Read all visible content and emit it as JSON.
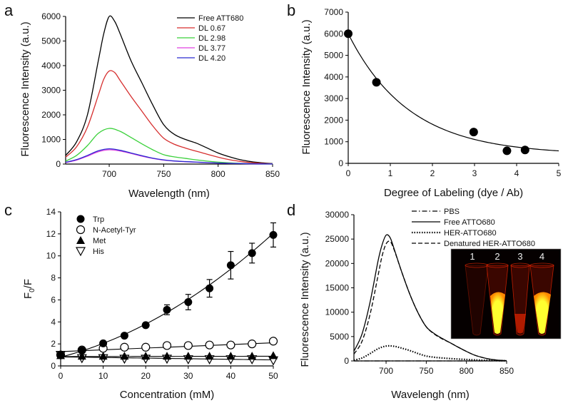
{
  "chart_data": [
    {
      "panel": "a",
      "type": "line",
      "xlabel": "Wavelength (nm)",
      "ylabel": "Fluorescence Intensity (a.u.)",
      "xlim": [
        660,
        850
      ],
      "ylim": [
        0,
        6000
      ],
      "xticks": [
        700,
        750,
        800,
        850
      ],
      "yticks": [
        0,
        1000,
        2000,
        3000,
        4000,
        5000,
        6000
      ],
      "grid": false,
      "legend": "top-right",
      "series": [
        {
          "name": "Free ATT680",
          "color": "#000000",
          "style": "solid",
          "x": [
            660,
            670,
            680,
            690,
            695,
            700,
            705,
            710,
            720,
            730,
            740,
            750,
            760,
            770,
            780,
            790,
            800,
            810,
            820,
            830,
            840,
            850
          ],
          "y": [
            350,
            900,
            2000,
            4200,
            5300,
            6000,
            5800,
            5300,
            4200,
            3300,
            2400,
            1600,
            1200,
            1000,
            850,
            650,
            450,
            300,
            180,
            100,
            50,
            20
          ]
        },
        {
          "name": "DL 0.67",
          "color": "#d62f2f",
          "style": "solid",
          "x": [
            660,
            670,
            680,
            690,
            695,
            700,
            705,
            710,
            720,
            730,
            740,
            750,
            760,
            770,
            780,
            790,
            800,
            810,
            820,
            830,
            840,
            850
          ],
          "y": [
            280,
            700,
            1500,
            2800,
            3450,
            3780,
            3720,
            3400,
            2750,
            2150,
            1550,
            1050,
            800,
            650,
            520,
            400,
            280,
            180,
            110,
            60,
            30,
            10
          ]
        },
        {
          "name": "DL 2.98",
          "color": "#3bd13b",
          "style": "solid",
          "x": [
            660,
            670,
            680,
            690,
            700,
            710,
            720,
            730,
            740,
            750,
            760,
            770,
            780,
            790,
            800,
            810,
            820,
            830,
            840,
            850
          ],
          "y": [
            120,
            350,
            750,
            1250,
            1450,
            1330,
            1080,
            820,
            580,
            380,
            290,
            230,
            170,
            120,
            80,
            50,
            30,
            15,
            8,
            5
          ]
        },
        {
          "name": "DL 3.77",
          "color": "#e040e0",
          "style": "solid",
          "x": [
            660,
            670,
            680,
            690,
            700,
            710,
            720,
            730,
            740,
            750,
            760,
            770,
            780,
            790,
            800,
            810,
            820,
            830,
            840,
            850
          ],
          "y": [
            60,
            160,
            320,
            500,
            580,
            530,
            430,
            320,
            230,
            160,
            120,
            95,
            75,
            55,
            40,
            28,
            18,
            10,
            5,
            3
          ]
        },
        {
          "name": "DL 4.20",
          "color": "#2a2ad0",
          "style": "solid",
          "x": [
            660,
            670,
            680,
            690,
            700,
            710,
            720,
            730,
            740,
            750,
            760,
            770,
            780,
            790,
            800,
            810,
            820,
            830,
            840,
            850
          ],
          "y": [
            70,
            180,
            350,
            540,
            620,
            560,
            450,
            340,
            240,
            170,
            125,
            100,
            80,
            58,
            42,
            30,
            20,
            12,
            6,
            3
          ]
        }
      ]
    },
    {
      "panel": "b",
      "type": "scatter",
      "xlabel": "Degree of Labeling (dye / Ab)",
      "ylabel": "Fluorescence Intensity (a.u.)",
      "xlim": [
        0,
        5
      ],
      "ylim": [
        0,
        7000
      ],
      "xticks": [
        0,
        1,
        2,
        3,
        4,
        5
      ],
      "yticks": [
        0,
        1000,
        2000,
        3000,
        4000,
        5000,
        6000,
        7000
      ],
      "grid": false,
      "points": {
        "x": [
          0,
          0.67,
          2.98,
          3.77,
          4.2
        ],
        "y": [
          6000,
          3750,
          1450,
          580,
          620
        ]
      },
      "fit": {
        "type": "exponential-decay",
        "y0": 400,
        "a": 5600,
        "k": 0.69
      }
    },
    {
      "panel": "c",
      "type": "scatter",
      "xlabel": "Concentration (mM)",
      "ylabel": "F0/F",
      "xlim": [
        0,
        50
      ],
      "ylim": [
        0,
        14
      ],
      "xticks": [
        0,
        10,
        20,
        30,
        40,
        50
      ],
      "yticks": [
        0,
        2,
        4,
        6,
        8,
        10,
        12,
        14
      ],
      "grid": false,
      "legend": "top-left",
      "series": [
        {
          "name": "Trp",
          "marker": "filled-circle",
          "x": [
            0,
            5,
            10,
            15,
            20,
            25,
            30,
            35,
            40,
            45,
            50
          ],
          "y": [
            1,
            1.4,
            2.05,
            2.75,
            3.7,
            5.1,
            5.8,
            7.05,
            9.15,
            10.25,
            11.9
          ],
          "err": [
            0.1,
            0.1,
            0.15,
            0.2,
            0.2,
            0.45,
            0.7,
            0.8,
            1.25,
            0.9,
            1.1
          ],
          "fit": {
            "type": "quadratic",
            "c0": 0.8,
            "c1": 0.1,
            "c2": 0.0025
          }
        },
        {
          "name": "N-Acetyl-Tyr",
          "marker": "open-circle",
          "x": [
            0,
            5,
            10,
            15,
            20,
            25,
            30,
            35,
            40,
            45,
            50
          ],
          "y": [
            1,
            1.45,
            1.6,
            1.7,
            1.7,
            1.85,
            1.85,
            1.9,
            1.9,
            2.0,
            2.25
          ],
          "fit": {
            "type": "linear",
            "c0": 1.3,
            "c1": 0.016
          }
        },
        {
          "name": "Met",
          "marker": "filled-triangle-up",
          "x": [
            0,
            5,
            10,
            15,
            20,
            25,
            30,
            35,
            40,
            45,
            50
          ],
          "y": [
            0.95,
            0.9,
            0.9,
            0.9,
            0.9,
            0.9,
            0.9,
            0.9,
            0.9,
            0.9,
            0.95
          ],
          "fit": {
            "type": "linear",
            "c0": 0.85,
            "c1": 0.0006
          }
        },
        {
          "name": "His",
          "marker": "open-triangle-down",
          "x": [
            0,
            5,
            10,
            15,
            20,
            25,
            30,
            35,
            40,
            45,
            50
          ],
          "y": [
            1,
            0.7,
            0.7,
            0.65,
            0.65,
            0.65,
            0.6,
            0.6,
            0.6,
            0.6,
            0.5
          ],
          "fit": {
            "type": "linear",
            "c0": 0.82,
            "c1": -0.0055
          }
        }
      ]
    },
    {
      "panel": "d",
      "type": "line",
      "xlabel": "Wavelengh (nm)",
      "ylabel": "Fluorescence Intensity (a.u.)",
      "xlim": [
        660,
        850
      ],
      "ylim": [
        0,
        30000
      ],
      "xticks": [
        700,
        750,
        800,
        850
      ],
      "yticks": [
        0,
        5000,
        10000,
        15000,
        20000,
        25000,
        30000
      ],
      "grid": false,
      "legend": "top-right",
      "series": [
        {
          "name": "PBS",
          "color": "#000000",
          "style": "dashdot",
          "x": [
            660,
            850
          ],
          "y": [
            0,
            0
          ]
        },
        {
          "name": "Free ATTO680",
          "color": "#000000",
          "style": "solid",
          "x": [
            660,
            670,
            680,
            690,
            695,
            700,
            705,
            710,
            720,
            730,
            740,
            750,
            760,
            770,
            780,
            790,
            800,
            810,
            820,
            830,
            840,
            850
          ],
          "y": [
            2000,
            5500,
            12000,
            20500,
            23800,
            25800,
            25300,
            23000,
            18000,
            13500,
            9800,
            7000,
            5600,
            4600,
            3700,
            2800,
            1950,
            1200,
            700,
            350,
            150,
            60
          ]
        },
        {
          "name": "HER-ATTO680",
          "color": "#000000",
          "style": "dotted",
          "x": [
            660,
            670,
            680,
            690,
            700,
            710,
            720,
            730,
            740,
            750,
            760,
            770,
            780,
            790,
            800,
            810,
            820,
            830,
            840,
            850
          ],
          "y": [
            150,
            600,
            1500,
            2500,
            3050,
            3000,
            2600,
            2100,
            1500,
            1000,
            750,
            600,
            480,
            380,
            300,
            220,
            150,
            100,
            60,
            30
          ]
        },
        {
          "name": "Denatured HER-ATTO680",
          "color": "#000000",
          "style": "dashed",
          "x": [
            660,
            670,
            680,
            690,
            695,
            700,
            705,
            710,
            720,
            730,
            740,
            750,
            760,
            770,
            780,
            790,
            800,
            810,
            820,
            830,
            840,
            850
          ],
          "y": [
            1400,
            4000,
            9500,
            17500,
            21500,
            24000,
            24500,
            22800,
            18000,
            13500,
            9800,
            7000,
            5500,
            4500,
            3700,
            2800,
            1950,
            1200,
            700,
            350,
            150,
            60
          ]
        }
      ],
      "inset": {
        "tube_labels": [
          "1",
          "2",
          "3",
          "4"
        ],
        "glow_colors": [
          "#ff2a00",
          "#ffff30"
        ]
      }
    }
  ]
}
